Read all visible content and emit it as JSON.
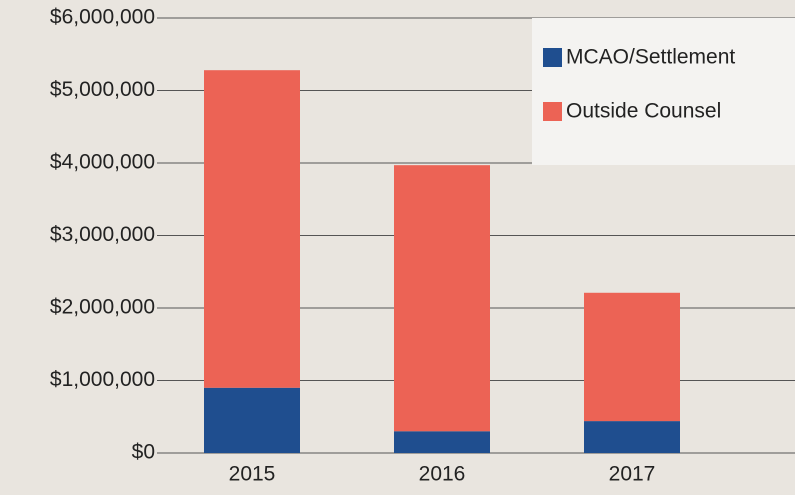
{
  "chart_data": {
    "type": "stacked_bar",
    "categories": [
      "2015",
      "2016",
      "2017"
    ],
    "series": [
      {
        "name": "MCAO/Settlement",
        "color": "#1f4e8f",
        "values": [
          900000,
          300000,
          440000
        ]
      },
      {
        "name": "Outside Counsel",
        "color": "#ec6355",
        "values": [
          4380000,
          3670000,
          1770000
        ]
      }
    ],
    "ylim": [
      0,
      6000000
    ],
    "yticks": [
      {
        "value": 0,
        "label": "$0"
      },
      {
        "value": 1000000,
        "label": "$1,000,000"
      },
      {
        "value": 2000000,
        "label": "$2,000,000"
      },
      {
        "value": 3000000,
        "label": "$3,000,000"
      },
      {
        "value": 4000000,
        "label": "$4,000,000"
      },
      {
        "value": 5000000,
        "label": "$5,000,000"
      },
      {
        "value": 6000000,
        "label": "$6,000,000"
      }
    ],
    "grid": true,
    "legend": "upper right"
  }
}
